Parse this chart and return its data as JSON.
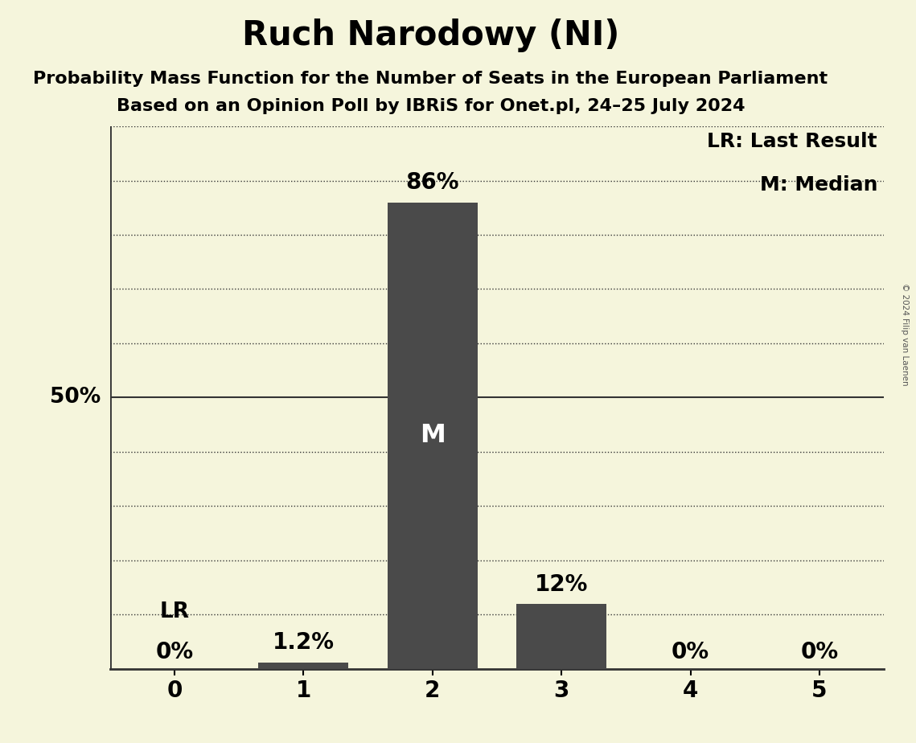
{
  "title": "Ruch Narodowy (NI)",
  "subtitle1": "Probability Mass Function for the Number of Seats in the European Parliament",
  "subtitle2": "Based on an Opinion Poll by IBRiS for Onet.pl, 24–25 July 2024",
  "copyright": "© 2024 Filip van Laenen",
  "categories": [
    0,
    1,
    2,
    3,
    4,
    5
  ],
  "values": [
    0.0,
    1.2,
    86.0,
    12.0,
    0.0,
    0.0
  ],
  "bar_color": "#4a4a4a",
  "background_color": "#f5f5dc",
  "ylim": [
    0,
    100
  ],
  "yticks": [
    0,
    10,
    20,
    30,
    40,
    50,
    60,
    70,
    80,
    90,
    100
  ],
  "median_bar": 2,
  "last_result_bar": 0,
  "legend_lr": "LR: Last Result",
  "legend_m": "M: Median",
  "bar_labels": [
    "0%",
    "1.2%",
    "86%",
    "12%",
    "0%",
    "0%"
  ],
  "median_label": "M",
  "lr_label": "LR",
  "fifty_percent_label": "50%",
  "grid_color": "#333333",
  "title_fontsize": 30,
  "subtitle_fontsize": 16,
  "tick_fontsize": 20,
  "annotation_fontsize": 19,
  "bar_label_fontsize": 20,
  "legend_fontsize": 18
}
